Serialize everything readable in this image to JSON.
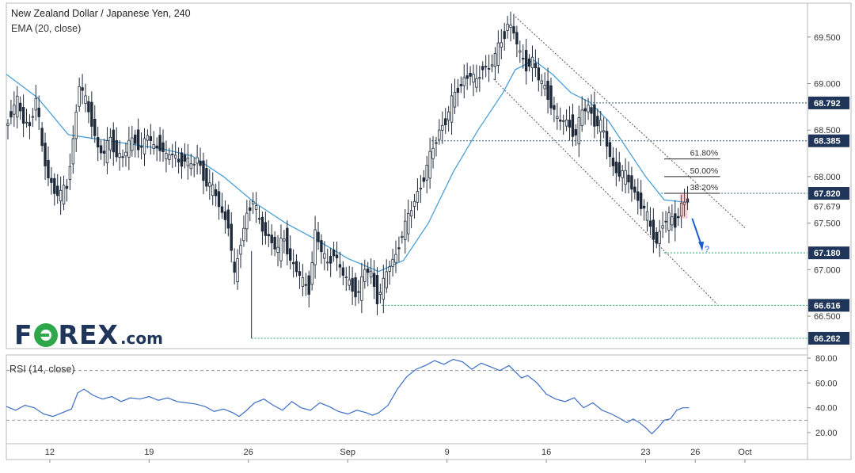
{
  "header": {
    "title": "New Zealand Dollar / Japanese Yen, 240",
    "indicator": "EMA (20, close)",
    "rsi_label": "RSI (14, close)"
  },
  "logo": {
    "prefix": "F",
    "suffix": "REX",
    "tld": ".com"
  },
  "colors": {
    "candle": "#1e2a3a",
    "ema": "#4a9fd8",
    "rsi": "#3b6ec4",
    "level_green": "#17a668",
    "level_dark": "#2b5d72",
    "channel": "#555555",
    "arrow": "#1a5fd0",
    "highlight": "#e06666",
    "price_label_bg": "#1f3559"
  },
  "chart_data": [
    {
      "type": "candlestick",
      "title": "New Zealand Dollar / Japanese Yen, 240",
      "indicator": "EMA (20, close)",
      "x_ticks": [
        "12",
        "19",
        "26",
        "Sep",
        "9",
        "16",
        "23",
        "26",
        "Oct"
      ],
      "y_ticks": [
        66.5,
        67.0,
        67.5,
        68.0,
        68.5,
        69.0,
        69.5
      ],
      "y_range": [
        66.15,
        69.9
      ],
      "price_levels": [
        {
          "label": "68.792",
          "value": 68.792,
          "style": "dark"
        },
        {
          "label": "68.385",
          "value": 68.385,
          "style": "dark"
        },
        {
          "label": "67.820",
          "value": 67.82,
          "style": "dark"
        },
        {
          "label": "67.679",
          "value": 67.679,
          "style": "plain"
        },
        {
          "label": "67.180",
          "value": 67.18,
          "style": "green"
        },
        {
          "label": "66.616",
          "value": 66.616,
          "style": "green"
        },
        {
          "label": "66.262",
          "value": 66.262,
          "style": "green"
        }
      ],
      "fib_levels": [
        {
          "label": "61.80%",
          "value": 68.19
        },
        {
          "label": "50.00%",
          "value": 68.0
        },
        {
          "label": "38.20%",
          "value": 67.82
        }
      ],
      "annotation": "?",
      "price_path": [
        [
          0,
          68.5
        ],
        [
          2,
          68.7
        ],
        [
          4,
          68.8
        ],
        [
          6,
          68.6
        ],
        [
          8,
          68.55
        ],
        [
          10,
          68.85
        ],
        [
          12,
          68.3
        ],
        [
          14,
          68.0
        ],
        [
          16,
          67.85
        ],
        [
          18,
          67.8
        ],
        [
          20,
          67.9
        ],
        [
          22,
          68.4
        ],
        [
          24,
          69.0
        ],
        [
          26,
          68.8
        ],
        [
          28,
          68.6
        ],
        [
          30,
          68.3
        ],
        [
          32,
          68.25
        ],
        [
          34,
          68.4
        ],
        [
          36,
          68.25
        ],
        [
          38,
          68.2
        ],
        [
          40,
          68.35
        ],
        [
          42,
          68.4
        ],
        [
          44,
          68.3
        ],
        [
          46,
          68.45
        ],
        [
          48,
          68.3
        ],
        [
          50,
          68.35
        ],
        [
          52,
          68.2
        ],
        [
          54,
          68.25
        ],
        [
          56,
          68.15
        ],
        [
          58,
          68.2
        ],
        [
          60,
          68.1
        ],
        [
          62,
          68.2
        ],
        [
          64,
          68.0
        ],
        [
          66,
          67.9
        ],
        [
          68,
          67.8
        ],
        [
          70,
          67.6
        ],
        [
          72,
          67.5
        ],
        [
          74,
          66.9
        ],
        [
          76,
          67.3
        ],
        [
          78,
          67.6
        ],
        [
          80,
          67.75
        ],
        [
          82,
          67.5
        ],
        [
          84,
          67.4
        ],
        [
          86,
          67.3
        ],
        [
          88,
          67.2
        ],
        [
          90,
          67.35
        ],
        [
          92,
          67.1
        ],
        [
          94,
          67.0
        ],
        [
          96,
          66.85
        ],
        [
          98,
          66.8
        ],
        [
          100,
          67.4
        ],
        [
          102,
          67.2
        ],
        [
          104,
          67.05
        ],
        [
          106,
          67.2
        ],
        [
          108,
          67.0
        ],
        [
          110,
          66.9
        ],
        [
          112,
          66.8
        ],
        [
          114,
          66.75
        ],
        [
          116,
          67.0
        ],
        [
          118,
          66.95
        ],
        [
          120,
          66.7
        ],
        [
          122,
          66.85
        ],
        [
          124,
          67.05
        ],
        [
          126,
          67.15
        ],
        [
          128,
          67.4
        ],
        [
          130,
          67.55
        ],
        [
          132,
          67.75
        ],
        [
          134,
          67.9
        ],
        [
          136,
          68.1
        ],
        [
          138,
          68.3
        ],
        [
          140,
          68.5
        ],
        [
          142,
          68.6
        ],
        [
          144,
          68.8
        ],
        [
          146,
          68.95
        ],
        [
          148,
          69.05
        ],
        [
          150,
          69.1
        ],
        [
          152,
          69.0
        ],
        [
          154,
          69.2
        ],
        [
          156,
          69.15
        ],
        [
          158,
          69.3
        ],
        [
          160,
          69.45
        ],
        [
          162,
          69.65
        ],
        [
          164,
          69.55
        ],
        [
          166,
          69.3
        ],
        [
          168,
          69.2
        ],
        [
          170,
          69.25
        ],
        [
          172,
          69.05
        ],
        [
          174,
          68.95
        ],
        [
          176,
          68.8
        ],
        [
          178,
          68.6
        ],
        [
          180,
          68.6
        ],
        [
          182,
          68.55
        ],
        [
          184,
          68.45
        ],
        [
          186,
          68.7
        ],
        [
          188,
          68.75
        ],
        [
          190,
          68.6
        ],
        [
          192,
          68.55
        ],
        [
          194,
          68.35
        ],
        [
          196,
          68.1
        ],
        [
          198,
          68.05
        ],
        [
          200,
          68.0
        ],
        [
          202,
          67.9
        ],
        [
          204,
          67.75
        ],
        [
          206,
          67.65
        ],
        [
          208,
          67.45
        ],
        [
          210,
          67.3
        ],
        [
          212,
          67.5
        ],
        [
          214,
          67.55
        ],
        [
          216,
          67.5
        ],
        [
          218,
          67.7
        ],
        [
          220,
          67.75
        ]
      ],
      "ema_path": [
        [
          0,
          69.1
        ],
        [
          10,
          68.85
        ],
        [
          20,
          68.45
        ],
        [
          30,
          68.4
        ],
        [
          40,
          68.35
        ],
        [
          50,
          68.3
        ],
        [
          60,
          68.22
        ],
        [
          70,
          68.0
        ],
        [
          80,
          67.72
        ],
        [
          90,
          67.5
        ],
        [
          100,
          67.32
        ],
        [
          110,
          67.12
        ],
        [
          120,
          66.98
        ],
        [
          128,
          67.1
        ],
        [
          136,
          67.5
        ],
        [
          144,
          68.05
        ],
        [
          152,
          68.5
        ],
        [
          160,
          68.9
        ],
        [
          164,
          69.15
        ],
        [
          170,
          69.25
        ],
        [
          176,
          69.1
        ],
        [
          182,
          68.9
        ],
        [
          188,
          68.8
        ],
        [
          194,
          68.6
        ],
        [
          200,
          68.3
        ],
        [
          206,
          68.0
        ],
        [
          212,
          67.75
        ],
        [
          220,
          67.72
        ]
      ],
      "x_tick_index": {
        "12": 14,
        "19": 46,
        "26": 78,
        "Sep": 110,
        "9": 142,
        "16": 174,
        "23": 206,
        "26b": 222,
        "Oct": 238
      }
    },
    {
      "type": "line",
      "title": "RSI (14, close)",
      "y_ticks": [
        20.0,
        40.0,
        60.0,
        80.0
      ],
      "y_range": [
        15,
        85
      ],
      "reference_lines": [
        30,
        70
      ],
      "values": [
        [
          0,
          41
        ],
        [
          3,
          38
        ],
        [
          6,
          42
        ],
        [
          9,
          40
        ],
        [
          12,
          35
        ],
        [
          15,
          33
        ],
        [
          18,
          36
        ],
        [
          21,
          39
        ],
        [
          23,
          52
        ],
        [
          25,
          55
        ],
        [
          28,
          50
        ],
        [
          31,
          47
        ],
        [
          34,
          49
        ],
        [
          37,
          45
        ],
        [
          40,
          48
        ],
        [
          43,
          47
        ],
        [
          46,
          49
        ],
        [
          49,
          46
        ],
        [
          52,
          48
        ],
        [
          55,
          45
        ],
        [
          58,
          44
        ],
        [
          61,
          43
        ],
        [
          64,
          41
        ],
        [
          67,
          37
        ],
        [
          70,
          39
        ],
        [
          73,
          36
        ],
        [
          75,
          33
        ],
        [
          77,
          37
        ],
        [
          80,
          44
        ],
        [
          83,
          47
        ],
        [
          86,
          42
        ],
        [
          89,
          38
        ],
        [
          92,
          45
        ],
        [
          95,
          40
        ],
        [
          98,
          38
        ],
        [
          101,
          44
        ],
        [
          104,
          41
        ],
        [
          107,
          37
        ],
        [
          110,
          35
        ],
        [
          113,
          38
        ],
        [
          116,
          36
        ],
        [
          118,
          34
        ],
        [
          120,
          36
        ],
        [
          123,
          42
        ],
        [
          126,
          55
        ],
        [
          129,
          65
        ],
        [
          132,
          71
        ],
        [
          135,
          74
        ],
        [
          138,
          78
        ],
        [
          141,
          75
        ],
        [
          144,
          79
        ],
        [
          147,
          77
        ],
        [
          150,
          71
        ],
        [
          153,
          76
        ],
        [
          156,
          73
        ],
        [
          159,
          70
        ],
        [
          162,
          74
        ],
        [
          164,
          69
        ],
        [
          166,
          64
        ],
        [
          168,
          66
        ],
        [
          171,
          60
        ],
        [
          174,
          51
        ],
        [
          177,
          47
        ],
        [
          180,
          45
        ],
        [
          183,
          48
        ],
        [
          186,
          40
        ],
        [
          189,
          44
        ],
        [
          192,
          38
        ],
        [
          195,
          35
        ],
        [
          198,
          31
        ],
        [
          200,
          28
        ],
        [
          202,
          31
        ],
        [
          204,
          28
        ],
        [
          206,
          24
        ],
        [
          208,
          19
        ],
        [
          210,
          24
        ],
        [
          212,
          30
        ],
        [
          214,
          31
        ],
        [
          216,
          38
        ],
        [
          218,
          40
        ],
        [
          220,
          40
        ]
      ]
    }
  ]
}
